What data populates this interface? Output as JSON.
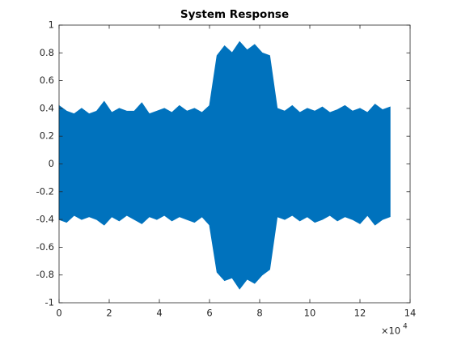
{
  "chart_data": {
    "type": "area",
    "title": "System Response",
    "x": [
      0,
      3000,
      6000,
      9000,
      12000,
      15000,
      18000,
      21000,
      24000,
      27000,
      30000,
      33000,
      36000,
      39000,
      42000,
      45000,
      48000,
      51000,
      54000,
      57000,
      60000,
      63000,
      66000,
      69000,
      72000,
      75000,
      78000,
      81000,
      84000,
      87000,
      90000,
      93000,
      96000,
      99000,
      102000,
      105000,
      108000,
      111000,
      114000,
      117000,
      120000,
      123000,
      126000,
      129000,
      132000
    ],
    "upper": [
      0.42,
      0.38,
      0.36,
      0.4,
      0.36,
      0.38,
      0.45,
      0.37,
      0.4,
      0.38,
      0.38,
      0.44,
      0.36,
      0.38,
      0.4,
      0.37,
      0.42,
      0.38,
      0.4,
      0.37,
      0.42,
      0.78,
      0.85,
      0.8,
      0.88,
      0.82,
      0.86,
      0.8,
      0.78,
      0.4,
      0.38,
      0.42,
      0.37,
      0.4,
      0.38,
      0.41,
      0.37,
      0.39,
      0.42,
      0.38,
      0.4,
      0.37,
      0.43,
      0.39,
      0.41
    ],
    "lower": [
      -0.4,
      -0.42,
      -0.37,
      -0.4,
      -0.38,
      -0.4,
      -0.44,
      -0.38,
      -0.41,
      -0.37,
      -0.4,
      -0.43,
      -0.38,
      -0.4,
      -0.37,
      -0.41,
      -0.38,
      -0.4,
      -0.42,
      -0.38,
      -0.44,
      -0.78,
      -0.84,
      -0.82,
      -0.9,
      -0.83,
      -0.86,
      -0.8,
      -0.76,
      -0.38,
      -0.4,
      -0.37,
      -0.41,
      -0.38,
      -0.42,
      -0.4,
      -0.37,
      -0.41,
      -0.38,
      -0.4,
      -0.43,
      -0.37,
      -0.44,
      -0.4,
      -0.38
    ],
    "color": "#0072bd",
    "xlim": [
      0,
      140000
    ],
    "xticks": [
      0,
      {
        "value": 20000,
        "label": "2"
      },
      {
        "value": 40000,
        "label": "4"
      },
      {
        "value": 60000,
        "label": "6"
      },
      {
        "value": 80000,
        "label": "8"
      },
      {
        "value": 100000,
        "label": "10"
      },
      {
        "value": 120000,
        "label": "12"
      },
      {
        "value": 140000,
        "label": "14"
      }
    ],
    "x_exponent_base": "×10",
    "x_exponent": "4",
    "ylim": [
      -1,
      1
    ],
    "yticks": [
      -1,
      -0.8,
      -0.6,
      -0.4,
      -0.2,
      0,
      0.2,
      0.4,
      0.6,
      0.8,
      1
    ]
  }
}
